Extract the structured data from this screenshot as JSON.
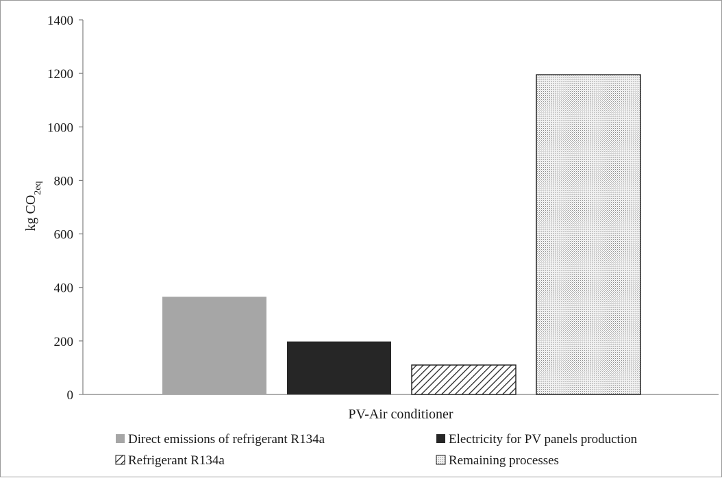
{
  "chart_data": {
    "type": "bar",
    "title": "",
    "xlabel": "PV-Air conditioner",
    "ylabel": {
      "main": "kg CO",
      "sub": "2eq"
    },
    "ylim": [
      0,
      1400
    ],
    "yticks": [
      0,
      200,
      400,
      600,
      800,
      1000,
      1200,
      1400
    ],
    "categories": [
      "PV-Air conditioner"
    ],
    "series": [
      {
        "name": "Direct emissions of refrigerant R134a",
        "values": [
          365
        ],
        "fill": "solid-gray",
        "color": "#a6a6a6"
      },
      {
        "name": "Electricity for PV panels production",
        "values": [
          198
        ],
        "fill": "solid-black",
        "color": "#262626"
      },
      {
        "name": "Refrigerant R134a",
        "values": [
          110
        ],
        "fill": "diagonal-hatch",
        "color": "#262626"
      },
      {
        "name": "Remaining processes",
        "values": [
          1195
        ],
        "fill": "dotted",
        "color": "#b0b0b0"
      }
    ],
    "grid": false,
    "legend_position": "bottom"
  }
}
